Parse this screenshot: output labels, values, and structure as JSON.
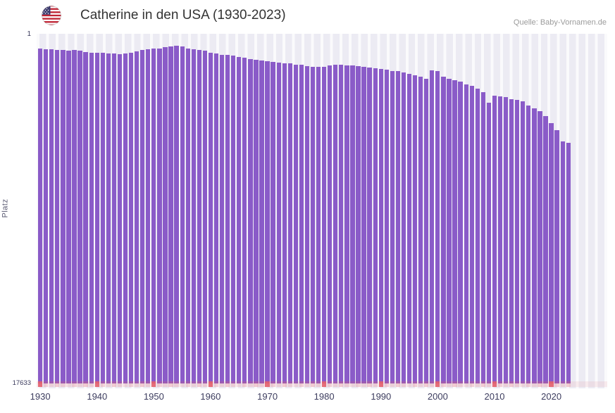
{
  "header": {
    "title": "Catherine in den USA (1930-2023)",
    "source": "Quelle: Baby-Vornamen.de",
    "flag_icon": "us-flag-icon"
  },
  "chart_data": {
    "type": "bar",
    "title": "Catherine in den USA (1930-2023)",
    "xlabel": "",
    "ylabel": "Platz",
    "y_axis": {
      "top_label": "1",
      "bottom_label": "17633",
      "inverted": true
    },
    "xticks": [
      "1930",
      "1940",
      "1950",
      "1960",
      "1970",
      "1980",
      "1990",
      "2000",
      "2010",
      "2020"
    ],
    "x": [
      1930,
      1931,
      1932,
      1933,
      1934,
      1935,
      1936,
      1937,
      1938,
      1939,
      1940,
      1941,
      1942,
      1943,
      1944,
      1945,
      1946,
      1947,
      1948,
      1949,
      1950,
      1951,
      1952,
      1953,
      1954,
      1955,
      1956,
      1957,
      1958,
      1959,
      1960,
      1961,
      1962,
      1963,
      1964,
      1965,
      1966,
      1967,
      1968,
      1969,
      1970,
      1971,
      1972,
      1973,
      1974,
      1975,
      1976,
      1977,
      1978,
      1979,
      1980,
      1981,
      1982,
      1983,
      1984,
      1985,
      1986,
      1987,
      1988,
      1989,
      1990,
      1991,
      1992,
      1993,
      1994,
      1995,
      1996,
      1997,
      1998,
      1999,
      2000,
      2001,
      2002,
      2003,
      2004,
      2005,
      2006,
      2007,
      2008,
      2009,
      2010,
      2011,
      2012,
      2013,
      2014,
      2015,
      2016,
      2017,
      2018,
      2019,
      2020,
      2021,
      2022,
      2023
    ],
    "values": [
      21,
      22,
      22,
      23,
      24,
      25,
      24,
      25,
      28,
      29,
      30,
      30,
      31,
      31,
      32,
      31,
      29,
      26,
      24,
      22,
      21,
      20,
      18,
      16,
      15,
      16,
      20,
      22,
      24,
      25,
      29,
      31,
      33,
      34,
      35,
      38,
      40,
      42,
      44,
      45,
      47,
      48,
      50,
      51,
      52,
      54,
      55,
      57,
      58,
      59,
      58,
      56,
      54,
      55,
      56,
      56,
      57,
      58,
      60,
      61,
      63,
      65,
      67,
      68,
      70,
      74,
      77,
      80,
      83,
      66,
      68,
      79,
      83,
      86,
      90,
      95,
      99,
      104,
      112,
      133,
      119,
      120,
      122,
      126,
      128,
      131,
      140,
      145,
      151,
      162,
      176,
      191,
      215,
      218
    ],
    "bar_color": "#8a5bc8",
    "plot_background": "#ecebf3",
    "decade_marker_color": "#e4606d",
    "legend": "none",
    "grid": "vertical-light"
  }
}
